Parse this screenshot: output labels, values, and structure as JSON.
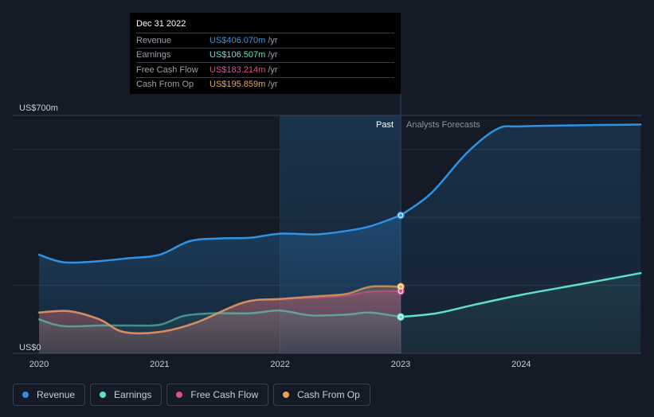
{
  "tooltip": {
    "date": "Dec 31 2022",
    "rows": [
      {
        "label": "Revenue",
        "value": "US$406.070m",
        "unit": "/yr",
        "color": "#2e93e6"
      },
      {
        "label": "Earnings",
        "value": "US$106.507m",
        "unit": "/yr",
        "color": "#5fe0cc"
      },
      {
        "label": "Free Cash Flow",
        "value": "US$183.214m",
        "unit": "/yr",
        "color": "#d8508d"
      },
      {
        "label": "Cash From Op",
        "value": "US$195.859m",
        "unit": "/yr",
        "color": "#e8a55a"
      }
    ]
  },
  "legend": [
    {
      "label": "Revenue",
      "color": "#2e93e6"
    },
    {
      "label": "Earnings",
      "color": "#5fe0cc"
    },
    {
      "label": "Free Cash Flow",
      "color": "#d8508d"
    },
    {
      "label": "Cash From Op",
      "color": "#e8a55a"
    }
  ],
  "chart_data": {
    "type": "line",
    "unit": "US$m",
    "ylim": [
      0,
      700
    ],
    "xlim": [
      2019.93,
      2024.99
    ],
    "y_tick_labels": [
      {
        "value": 700,
        "label": "US$700m"
      },
      {
        "value": 0,
        "label": "US$0"
      }
    ],
    "x_tick_labels": [
      {
        "value": 2020,
        "label": "2020"
      },
      {
        "value": 2021,
        "label": "2021"
      },
      {
        "value": 2022,
        "label": "2022"
      },
      {
        "value": 2023,
        "label": "2023"
      },
      {
        "value": 2024,
        "label": "2024"
      }
    ],
    "divider": 2023.0,
    "region_labels": {
      "past": "Past",
      "forecast": "Analysts Forecasts"
    },
    "series": [
      {
        "name": "Revenue",
        "color": "#2e93e6",
        "past": [
          [
            2020.0,
            290
          ],
          [
            2020.2,
            268
          ],
          [
            2020.45,
            270
          ],
          [
            2020.75,
            280
          ],
          [
            2021.0,
            290
          ],
          [
            2021.25,
            330
          ],
          [
            2021.5,
            338
          ],
          [
            2021.75,
            340
          ],
          [
            2022.0,
            352
          ],
          [
            2022.3,
            350
          ],
          [
            2022.55,
            360
          ],
          [
            2022.75,
            374
          ],
          [
            2023.0,
            406
          ]
        ],
        "forecast": [
          [
            2023.0,
            406
          ],
          [
            2023.25,
            470
          ],
          [
            2023.55,
            590
          ],
          [
            2023.8,
            660
          ],
          [
            2024.0,
            668
          ],
          [
            2024.5,
            671
          ],
          [
            2024.99,
            673
          ]
        ]
      },
      {
        "name": "Earnings",
        "color": "#5fe0cc",
        "past": [
          [
            2020.0,
            100
          ],
          [
            2020.2,
            80
          ],
          [
            2020.5,
            82
          ],
          [
            2020.75,
            82
          ],
          [
            2021.0,
            84
          ],
          [
            2021.2,
            110
          ],
          [
            2021.45,
            118
          ],
          [
            2021.75,
            118
          ],
          [
            2022.0,
            126
          ],
          [
            2022.25,
            112
          ],
          [
            2022.55,
            114
          ],
          [
            2022.75,
            120
          ],
          [
            2023.0,
            107
          ]
        ],
        "forecast": [
          [
            2023.0,
            107
          ],
          [
            2023.3,
            118
          ],
          [
            2023.6,
            142
          ],
          [
            2024.0,
            172
          ],
          [
            2024.5,
            204
          ],
          [
            2024.99,
            236
          ]
        ]
      },
      {
        "name": "Free Cash Flow",
        "color": "#d8508d",
        "past": [
          [
            2020.0,
            120
          ],
          [
            2020.25,
            124
          ],
          [
            2020.5,
            100
          ],
          [
            2020.7,
            63
          ],
          [
            2021.0,
            63
          ],
          [
            2021.3,
            90
          ],
          [
            2021.7,
            150
          ],
          [
            2022.0,
            160
          ],
          [
            2022.3,
            164
          ],
          [
            2022.55,
            170
          ],
          [
            2022.75,
            182
          ],
          [
            2023.0,
            183
          ]
        ],
        "forecast": []
      },
      {
        "name": "Cash From Op",
        "color": "#e8a55a",
        "past": [
          [
            2020.0,
            120
          ],
          [
            2020.25,
            124
          ],
          [
            2020.5,
            100
          ],
          [
            2020.7,
            63
          ],
          [
            2021.0,
            63
          ],
          [
            2021.3,
            90
          ],
          [
            2021.7,
            150
          ],
          [
            2022.0,
            160
          ],
          [
            2022.3,
            168
          ],
          [
            2022.55,
            175
          ],
          [
            2022.75,
            196
          ],
          [
            2023.0,
            196
          ]
        ],
        "forecast": []
      }
    ]
  }
}
